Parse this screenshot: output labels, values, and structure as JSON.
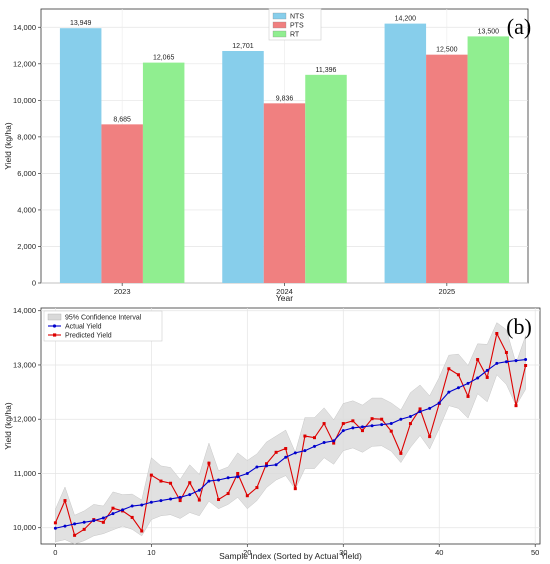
{
  "chart_data": [
    {
      "type": "bar",
      "panel_label": "(a)",
      "categories": [
        "2023",
        "2024",
        "2025"
      ],
      "series": [
        {
          "name": "NTS",
          "values": [
            13949,
            12701,
            14200
          ],
          "color": "#87ceeb"
        },
        {
          "name": "PTS",
          "values": [
            8685,
            9836,
            12500
          ],
          "color": "#f08080"
        },
        {
          "name": "RT",
          "values": [
            12065,
            11396,
            13500
          ],
          "color": "#90ee90"
        }
      ],
      "data_labels": [
        [
          "13,949",
          "12,701",
          "14,200"
        ],
        [
          "8,685",
          "9,836",
          "12,500"
        ],
        [
          "12,065",
          "11,396",
          "13,500"
        ]
      ],
      "xlabel": "Year",
      "ylabel": "Yield (kg/ha)",
      "ylim": [
        0,
        15000
      ],
      "yticks": [
        0,
        2000,
        4000,
        6000,
        8000,
        10000,
        12000,
        14000
      ],
      "ytick_labels": [
        "0",
        "2,000",
        "4,000",
        "6,000",
        "8,000",
        "10,000",
        "12,000",
        "14,000"
      ],
      "grid": true,
      "legend": "top-center"
    },
    {
      "type": "line",
      "panel_label": "(b)",
      "x": [
        0,
        1,
        2,
        3,
        4,
        5,
        6,
        7,
        8,
        9,
        10,
        11,
        12,
        13,
        14,
        15,
        16,
        17,
        18,
        19,
        20,
        21,
        22,
        23,
        24,
        25,
        26,
        27,
        28,
        29,
        30,
        31,
        32,
        33,
        34,
        35,
        36,
        37,
        38,
        39,
        40,
        41,
        42,
        43,
        44,
        45,
        46,
        47,
        48,
        49
      ],
      "series": [
        {
          "name": "Actual Yield",
          "color": "#0000cc",
          "values": [
            9990,
            10030,
            10070,
            10100,
            10130,
            10180,
            10260,
            10330,
            10400,
            10420,
            10470,
            10500,
            10530,
            10560,
            10610,
            10690,
            10860,
            10880,
            10920,
            10940,
            11000,
            11120,
            11140,
            11160,
            11300,
            11380,
            11420,
            11500,
            11570,
            11600,
            11790,
            11840,
            11860,
            11880,
            11900,
            11920,
            12000,
            12050,
            12140,
            12200,
            12300,
            12500,
            12580,
            12660,
            12760,
            12900,
            13030,
            13060,
            13080,
            13100
          ]
        },
        {
          "name": "Predicted Yield",
          "color": "#dd0000",
          "values": [
            10090,
            10500,
            9860,
            9970,
            10150,
            10100,
            10360,
            10310,
            10190,
            9940,
            10970,
            10860,
            10820,
            10500,
            10830,
            10510,
            11190,
            10520,
            10630,
            11000,
            10590,
            10740,
            11180,
            11390,
            11460,
            10720,
            11690,
            11660,
            11920,
            11560,
            11920,
            11970,
            11790,
            12010,
            12000,
            11780,
            11370,
            11920,
            12190,
            11680,
            12290,
            12930,
            12820,
            12420,
            13100,
            12770,
            13580,
            13230,
            12250,
            12990
          ]
        }
      ],
      "confidence_band": {
        "name": "95% Confidence Interval",
        "color": "#d9d9d9",
        "lower": [
          9740,
          9780,
          9700,
          9760,
          9850,
          9890,
          9960,
          10030,
          9970,
          9850,
          10150,
          10220,
          10240,
          10170,
          10280,
          10220,
          10490,
          10350,
          10430,
          10560,
          10350,
          10500,
          10740,
          10880,
          10960,
          10710,
          11090,
          11090,
          11290,
          11170,
          11420,
          11470,
          11390,
          11500,
          11510,
          11410,
          11200,
          11480,
          11700,
          11450,
          11830,
          12250,
          12200,
          12020,
          12470,
          12320,
          12820,
          12640,
          12250,
          12550
        ],
        "upper": [
          10340,
          10750,
          10230,
          10310,
          10430,
          10400,
          10660,
          10610,
          10620,
          10510,
          11290,
          11140,
          11110,
          10890,
          11160,
          10980,
          11560,
          11050,
          11120,
          11380,
          11240,
          11360,
          11580,
          11690,
          11800,
          11390,
          12030,
          12030,
          12210,
          11990,
          12290,
          12340,
          12260,
          12390,
          12390,
          12300,
          12170,
          12490,
          12630,
          12430,
          12770,
          13180,
          13200,
          12990,
          13390,
          13380,
          13780,
          13650,
          13030,
          13540
        ]
      },
      "xlabel": "Sample Index (Sorted by Actual Yield)",
      "ylabel": "Yield (kg/ha)",
      "xlim": [
        -1.5,
        50.5
      ],
      "ylim": [
        9700,
        14050
      ],
      "xticks": [
        0,
        10,
        20,
        30,
        40,
        50
      ],
      "xtick_labels": [
        "0",
        "10",
        "20",
        "30",
        "40",
        "50"
      ],
      "yticks": [
        10000,
        11000,
        12000,
        13000,
        14000
      ],
      "ytick_labels": [
        "10,000",
        "11,000",
        "12,000",
        "13,000",
        "14,000"
      ],
      "grid": true,
      "legend": "top-left"
    }
  ]
}
